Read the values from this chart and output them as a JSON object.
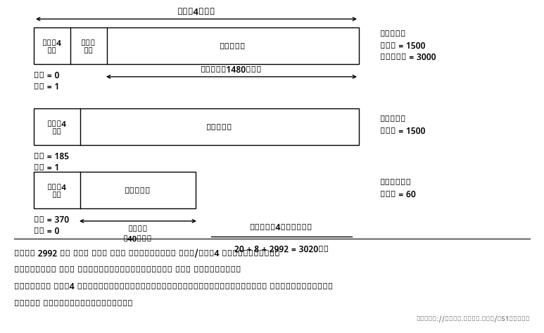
{
  "bg_color": "#ffffff",
  "top_arrow_label": "IPv4数据报",
  "frag1_right": [
    "第一个分片",
    "总长度 = 1500",
    "UDP长度 = 3000"
  ],
  "frag2_right": [
    "第二个分片",
    "总长度 = 1500"
  ],
  "frag3_right": [
    "最后一个分片",
    "总长度 = 60"
  ],
  "label_bias0": "偏移 = 0",
  "label_mf1a": "MF = 1",
  "label_bias185": "偏移 = 185",
  "label_mf1b": "MF = 1",
  "label_bias370": "偏移 = 370",
  "label_mf0": "MF = 0",
  "arrow1_label": "IP负载（1480字节）",
  "arrow3_label": "IP负载\n（40字节）",
  "orig_title": "原始IPv4数据报总长度",
  "orig_formula": "20 + 8 + 2992 = 3020字节",
  "cell_ipv4": "IPv4\n头部",
  "cell_udp_hdr": "UDP\n头部",
  "cell_udp_data": "UDP数据",
  "bottom_line1": "一个带有 2992 字节 UDP 负载的 UDP 数据报被分片成三个 UDP/IPv4 分组（没有选项）。包含",
  "bottom_line2": "源和目的端口号的 UDP 头部只出现在第一个分片里（对防火墙和 NAT 来说，这是一个复杂",
  "bottom_line3": "因素）。分片由 IPv4 头部中的标识（Identification）、分片偏移（Fragment Offset）和更多分片",
  "bottom_line4": "（More Fragments，MF）字段控制",
  "watermark": "https://blog.csdn.net/@51CTO博客"
}
